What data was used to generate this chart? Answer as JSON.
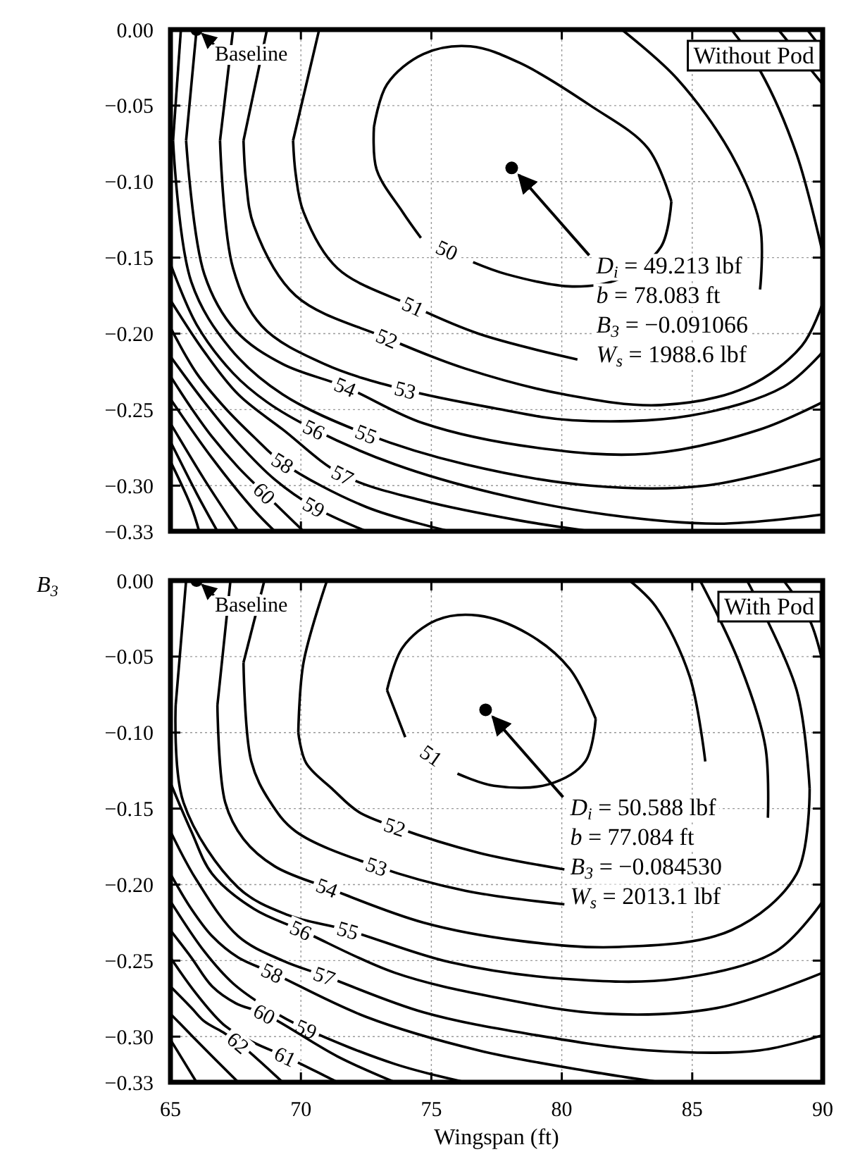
{
  "chart_data": [
    {
      "type": "line",
      "title": "Without Pod",
      "xlim": [
        65,
        90
      ],
      "xticks": [
        65,
        70,
        75,
        80,
        85,
        90
      ],
      "ylim": [
        -0.33,
        0
      ],
      "yticks": [
        {
          "value": 0,
          "label": "0.00"
        },
        {
          "value": -0.05,
          "label": "−0.05"
        },
        {
          "value": -0.1,
          "label": "−0.10"
        },
        {
          "value": -0.15,
          "label": "−0.15"
        },
        {
          "value": -0.2,
          "label": "−0.20"
        },
        {
          "value": -0.25,
          "label": "−0.25"
        },
        {
          "value": -0.3,
          "label": "−0.30"
        },
        {
          "value": -0.33,
          "label": "−0.33"
        }
      ],
      "grid": true,
      "tick_labels": "y",
      "series": [
        {
          "name": "50",
          "color": "#000000",
          "x": [
            84.2,
            83.8,
            82.2,
            80.4,
            77.9,
            76.6,
            null,
            74.6,
            73.9,
            72.9,
            72.8
          ],
          "values": [
            -0.113,
            -0.143,
            -0.164,
            -0.169,
            -0.161,
            -0.153,
            null,
            -0.137,
            -0.12,
            -0.092,
            -0.064
          ]
        },
        {
          "color": "#000000",
          "x": [
            72.8,
            73.3,
            74.7,
            76.5,
            78.4,
            81.1,
            83.3,
            84.2
          ],
          "values": [
            -0.064,
            -0.036,
            -0.016,
            -0.011,
            -0.022,
            -0.05,
            -0.078,
            -0.113
          ]
        },
        {
          "color": "#000000",
          "x": [
            70.7,
            69.7
          ],
          "values": [
            0,
            -0.073
          ]
        },
        {
          "name": "51",
          "color": "#000000",
          "x": [
            69.7,
            69.8,
            70.1,
            71.4,
            74.3,
            76.8,
            80.6
          ],
          "values": [
            -0.073,
            -0.095,
            -0.12,
            -0.157,
            -0.182,
            -0.2,
            -0.217
          ]
        },
        {
          "color": "#000000",
          "x": [
            87.6,
            87.6,
            86.5,
            84.4,
            82.3
          ],
          "values": [
            -0.171,
            -0.129,
            -0.082,
            -0.032,
            0
          ]
        },
        {
          "color": "#000000",
          "x": [
            68.7,
            67.8
          ],
          "values": [
            0,
            -0.073
          ]
        },
        {
          "name": "52",
          "color": "#000000",
          "x": [
            67.8,
            67.9,
            68.2,
            69.8,
            73.3,
            76.3,
            80.1,
            83.8,
            87.1,
            89.2,
            90
          ],
          "values": [
            -0.073,
            -0.1,
            -0.129,
            -0.175,
            -0.203,
            -0.223,
            -0.24,
            -0.247,
            -0.235,
            -0.208,
            -0.18
          ]
        },
        {
          "color": "#000000",
          "x": [
            90,
            89,
            87.6,
            86.5
          ],
          "values": [
            -0.147,
            -0.082,
            -0.027,
            0
          ]
        },
        {
          "color": "#000000",
          "x": [
            67.4,
            66.9
          ],
          "values": [
            0,
            -0.073
          ]
        },
        {
          "name": "53",
          "color": "#000000",
          "x": [
            66.9,
            67.4,
            68.5,
            70.9,
            74,
            77.4,
            80.4,
            84.9,
            88.5,
            90
          ],
          "values": [
            -0.073,
            -0.157,
            -0.195,
            -0.22,
            -0.237,
            -0.249,
            -0.257,
            -0.254,
            -0.235,
            -0.212
          ]
        },
        {
          "color": "#000000",
          "x": [
            90,
            88.3
          ],
          "values": [
            -0.036,
            0
          ]
        },
        {
          "color": "#000000",
          "x": [
            66,
            65.6
          ],
          "values": [
            0,
            -0.073
          ]
        },
        {
          "name": "54",
          "color": "#000000",
          "x": [
            65.6,
            66.3,
            67.5,
            69.3,
            71.7,
            74.7,
            79,
            83.3,
            87.6,
            90
          ],
          "values": [
            -0.073,
            -0.161,
            -0.198,
            -0.22,
            -0.235,
            -0.259,
            -0.275,
            -0.279,
            -0.263,
            -0.245
          ]
        },
        {
          "color": "#000000",
          "x": [
            90,
            89.4
          ],
          "values": [
            -0.013,
            0
          ]
        },
        {
          "color": "#000000",
          "x": [
            65.4,
            65.1
          ],
          "values": [
            0,
            -0.073
          ]
        },
        {
          "name": "55",
          "color": "#000000",
          "x": [
            65.1,
            65.8,
            67.3,
            69.3,
            72.5,
            76.3,
            81.1,
            85.5,
            90
          ],
          "values": [
            -0.073,
            -0.166,
            -0.21,
            -0.24,
            -0.266,
            -0.286,
            -0.3,
            -0.3,
            -0.282
          ]
        },
        {
          "name": "56",
          "color": "#000000",
          "x": [
            65,
            66,
            67.4,
            68.7,
            70.5,
            73.6,
            77.4,
            81.7,
            86,
            90
          ],
          "values": [
            -0.154,
            -0.194,
            -0.226,
            -0.245,
            -0.263,
            -0.286,
            -0.305,
            -0.319,
            -0.325,
            -0.319
          ]
        },
        {
          "name": "57",
          "color": "#000000",
          "x": [
            65,
            66.3,
            67.6,
            69.3,
            71.6,
            74.7,
            78.4,
            81.1
          ],
          "values": [
            -0.178,
            -0.212,
            -0.24,
            -0.263,
            -0.293,
            -0.31,
            -0.323,
            -0.33
          ]
        },
        {
          "name": "58",
          "color": "#000000",
          "x": [
            65,
            66,
            67.1,
            68.2,
            69.3,
            72.5,
            75.7
          ],
          "values": [
            -0.196,
            -0.226,
            -0.249,
            -0.268,
            -0.285,
            -0.314,
            -0.33
          ]
        },
        {
          "name": "59",
          "color": "#000000",
          "x": [
            65,
            66.3,
            67.6,
            69,
            70.5,
            72.5
          ],
          "values": [
            -0.215,
            -0.245,
            -0.272,
            -0.296,
            -0.314,
            -0.33
          ]
        },
        {
          "name": "60",
          "color": "#000000",
          "x": [
            65,
            65.8,
            66.6,
            67.6,
            68.6,
            70.1
          ],
          "values": [
            -0.228,
            -0.249,
            -0.268,
            -0.288,
            -0.305,
            -0.33
          ]
        },
        {
          "color": "#000000",
          "x": [
            65,
            66.6,
            68.2,
            69
          ],
          "values": [
            -0.243,
            -0.282,
            -0.316,
            -0.33
          ]
        },
        {
          "color": "#000000",
          "x": [
            65,
            66.3,
            67.6
          ],
          "values": [
            -0.259,
            -0.296,
            -0.33
          ]
        },
        {
          "color": "#000000",
          "x": [
            65,
            66,
            66.8
          ],
          "values": [
            -0.271,
            -0.305,
            -0.33
          ]
        },
        {
          "color": "#000000",
          "x": [
            65,
            65.8,
            66.1
          ],
          "values": [
            -0.284,
            -0.314,
            -0.33
          ]
        },
        {
          "type": "scatter",
          "marker": "circle",
          "color": "#000000",
          "x": [
            78.08
          ],
          "values": [
            -0.091
          ]
        },
        {
          "type": "scatter",
          "marker": "circle",
          "color": "#000000",
          "x": [
            66
          ],
          "values": [
            0
          ]
        }
      ],
      "annotations": [
        {
          "text": "Baseline",
          "x": 66,
          "y": 0
        },
        {
          "text": "D$_{i}$ = 49.213 lbf",
          "x": 78.08,
          "y": -0.091
        },
        "b = 78.083 ft",
        "B$_{3}$ = −0.091066",
        "W$_{s}$ = 1988.6 lbf"
      ]
    },
    {
      "type": "line",
      "title": "With Pod",
      "xlabel": "Wingspan (ft)",
      "ylabel": "B$_{3}$",
      "xlim": [
        65,
        90
      ],
      "xticks": [
        65,
        70,
        75,
        80,
        85,
        90
      ],
      "ylim": [
        -0.33,
        0
      ],
      "yticks": [
        {
          "value": 0,
          "label": "0.00"
        },
        {
          "value": -0.05,
          "label": "−0.05"
        },
        {
          "value": -0.1,
          "label": "−0.10"
        },
        {
          "value": -0.15,
          "label": "−0.15"
        },
        {
          "value": -0.2,
          "label": "−0.20"
        },
        {
          "value": -0.25,
          "label": "−0.25"
        },
        {
          "value": -0.3,
          "label": "−0.30"
        },
        {
          "value": -0.33,
          "label": "−0.33"
        }
      ],
      "grid": true,
      "series": [
        {
          "name": "51",
          "color": "#000000",
          "x": [
            81.3,
            80.9,
            79.5,
            77.4,
            76,
            null,
            74,
            73.3
          ],
          "values": [
            -0.091,
            -0.119,
            -0.134,
            -0.135,
            -0.127,
            null,
            -0.103,
            -0.072
          ]
        },
        {
          "color": "#000000",
          "x": [
            73.3,
            73.9,
            75.2,
            76.8,
            78.7,
            80.3,
            81.3
          ],
          "values": [
            -0.072,
            -0.044,
            -0.026,
            -0.023,
            -0.035,
            -0.058,
            -0.091
          ]
        },
        {
          "color": "#000000",
          "x": [
            71,
            70.1,
            69.9
          ],
          "values": [
            0,
            -0.054,
            -0.1
          ]
        },
        {
          "name": "52",
          "color": "#000000",
          "x": [
            69.9,
            70.2,
            71.2,
            72.2,
            73.6,
            76.8,
            80.1
          ],
          "values": [
            -0.1,
            -0.12,
            -0.137,
            -0.152,
            -0.162,
            -0.179,
            -0.19
          ]
        },
        {
          "color": "#000000",
          "x": [
            85.5,
            84.9,
            83.6,
            82.6
          ],
          "values": [
            -0.119,
            -0.063,
            -0.017,
            0
          ]
        },
        {
          "color": "#000000",
          "x": [
            68.6,
            67.8
          ],
          "values": [
            0,
            -0.054
          ]
        },
        {
          "name": "53",
          "color": "#000000",
          "x": [
            67.8,
            68.1,
            68.8,
            69.8,
            72.9,
            76.3,
            80.1
          ],
          "values": [
            -0.054,
            -0.119,
            -0.145,
            -0.165,
            -0.188,
            -0.204,
            -0.213
          ]
        },
        {
          "color": "#000000",
          "x": [
            87.9,
            87.8,
            86.8,
            85.3
          ],
          "values": [
            -0.156,
            -0.109,
            -0.054,
            0
          ]
        },
        {
          "color": "#000000",
          "x": [
            67.3,
            66.8
          ],
          "values": [
            0,
            -0.082
          ]
        },
        {
          "name": "54",
          "color": "#000000",
          "x": [
            66.8,
            67.1,
            67.8,
            69,
            71,
            74.7,
            78.4,
            82.2,
            86.5,
            89,
            89.5
          ],
          "values": [
            -0.082,
            -0.146,
            -0.17,
            -0.188,
            -0.202,
            -0.225,
            -0.237,
            -0.241,
            -0.23,
            -0.193,
            -0.137
          ]
        },
        {
          "color": "#000000",
          "x": [
            89.5,
            89,
            87.1
          ],
          "values": [
            -0.137,
            -0.072,
            0
          ]
        },
        {
          "color": "#000000",
          "x": [
            65.6,
            65.2
          ],
          "values": [
            0,
            -0.082
          ]
        },
        {
          "name": "55",
          "color": "#000000",
          "x": [
            65.2,
            65.5,
            67.6,
            69.5,
            71.8,
            75.7,
            80.1,
            84.4,
            88.2,
            90
          ],
          "values": [
            -0.082,
            -0.146,
            -0.202,
            -0.22,
            -0.23,
            -0.251,
            -0.262,
            -0.262,
            -0.244,
            -0.211
          ]
        },
        {
          "color": "#000000",
          "x": [
            90,
            89.5,
            88.5
          ],
          "values": [
            -0.054,
            -0.026,
            0
          ]
        },
        {
          "name": "56",
          "color": "#000000",
          "x": [
            65,
            65.8,
            66.6,
            68.2,
            70,
            73.6,
            77.4,
            81.7,
            86,
            90
          ],
          "values": [
            -0.133,
            -0.165,
            -0.193,
            -0.216,
            -0.23,
            -0.258,
            -0.274,
            -0.285,
            -0.281,
            -0.258
          ]
        },
        {
          "name": "57",
          "color": "#000000",
          "x": [
            65,
            66,
            67.6,
            69.3,
            70.9,
            74.7,
            79,
            83.3,
            87.6,
            90
          ],
          "values": [
            -0.165,
            -0.197,
            -0.234,
            -0.25,
            -0.26,
            -0.284,
            -0.299,
            -0.309,
            -0.309,
            -0.299
          ]
        },
        {
          "name": "58",
          "color": "#000000",
          "x": [
            65,
            65.8,
            66.6,
            67.6,
            68.9,
            72.5,
            76.8,
            81.1,
            83.8
          ],
          "values": [
            -0.193,
            -0.216,
            -0.234,
            -0.248,
            -0.258,
            -0.287,
            -0.309,
            -0.323,
            -0.33
          ]
        },
        {
          "name": "59",
          "color": "#000000",
          "x": [
            65,
            66.3,
            67.4,
            68.7,
            70.2,
            73.6,
            76.3
          ],
          "values": [
            -0.211,
            -0.244,
            -0.265,
            -0.281,
            -0.295,
            -0.318,
            -0.33
          ]
        },
        {
          "name": "60",
          "color": "#000000",
          "x": [
            65,
            65.8,
            66.6,
            67.5,
            68.6,
            71.4,
            73.6
          ],
          "values": [
            -0.23,
            -0.248,
            -0.267,
            -0.278,
            -0.285,
            -0.313,
            -0.33
          ]
        },
        {
          "name": "61",
          "color": "#000000",
          "x": [
            65,
            66,
            67.1,
            68.2,
            69.4,
            71.4
          ],
          "values": [
            -0.248,
            -0.272,
            -0.293,
            -0.304,
            -0.313,
            -0.33
          ]
        },
        {
          "name": "62",
          "color": "#000000",
          "x": [
            65,
            65.8,
            66.3,
            67,
            67.6,
            69.3
          ],
          "values": [
            -0.267,
            -0.281,
            -0.29,
            -0.297,
            -0.304,
            -0.33
          ]
        },
        {
          "color": "#000000",
          "x": [
            65,
            66.6,
            67.6
          ],
          "values": [
            -0.285,
            -0.313,
            -0.33
          ]
        },
        {
          "color": "#000000",
          "x": [
            65,
            66
          ],
          "values": [
            -0.302,
            -0.33
          ]
        },
        {
          "type": "scatter",
          "marker": "circle",
          "color": "#000000",
          "x": [
            77.08
          ],
          "values": [
            -0.085
          ]
        },
        {
          "type": "scatter",
          "marker": "circle",
          "color": "#000000",
          "x": [
            66
          ],
          "values": [
            0
          ]
        }
      ],
      "annotations": [
        {
          "text": "Baseline",
          "x": 66,
          "y": 0
        },
        {
          "text": "D$_{i}$ = 50.588 lbf",
          "x": 77.08,
          "y": -0.085
        },
        "b = 77.084 ft",
        "B$_{3}$ = −0.084530",
        "W$_{s}$ = 2013.1 lbf"
      ]
    }
  ]
}
